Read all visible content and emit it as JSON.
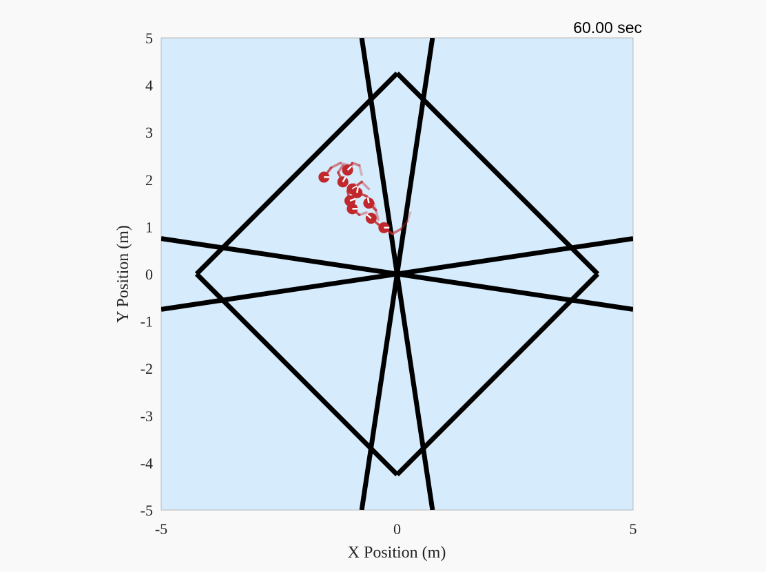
{
  "timer": {
    "text": "60.00 sec"
  },
  "chart_data": {
    "type": "scatter",
    "title": "",
    "xlabel": "X Position (m)",
    "ylabel": "Y Position (m)",
    "xlim": [
      -5,
      5
    ],
    "ylim": [
      -5,
      5
    ],
    "xticks": [
      -5,
      0,
      5
    ],
    "xtick_labels": [
      "-5",
      "0",
      "5"
    ],
    "yticks": [
      5,
      4,
      3,
      2,
      1,
      0,
      -1,
      -2,
      -3,
      -4,
      -5
    ],
    "ytick_labels": [
      "5",
      "4",
      "3",
      "2",
      "1",
      "0",
      "-1",
      "-2",
      "-3",
      "-4",
      "-5"
    ],
    "grid": false,
    "legend": "none",
    "colors": {
      "plot_background": "#d6ebfb",
      "boundary": "#000000",
      "agent": "#c0282d",
      "heading_stripe": "#ffffff"
    },
    "boundary_lines": [
      {
        "x": [
          -0.75,
          0.75
        ],
        "y": [
          5,
          -5
        ]
      },
      {
        "x": [
          -0.75,
          0.75
        ],
        "y": [
          -5,
          5
        ]
      },
      {
        "x": [
          -5,
          5
        ],
        "y": [
          -0.75,
          0.75
        ]
      },
      {
        "x": [
          -5,
          5
        ],
        "y": [
          0.75,
          -0.75
        ]
      },
      {
        "x": [
          -4.25,
          0
        ],
        "y": [
          0,
          4.25
        ]
      },
      {
        "x": [
          0,
          4.25
        ],
        "y": [
          4.25,
          0
        ]
      },
      {
        "x": [
          4.25,
          0
        ],
        "y": [
          0,
          -4.25
        ]
      },
      {
        "x": [
          0,
          -4.25
        ],
        "y": [
          -4.25,
          0
        ]
      }
    ],
    "series": [
      {
        "points": [
          {
            "x": -1.55,
            "y": 2.05,
            "heading": 0
          },
          {
            "x": -1.05,
            "y": 2.2,
            "heading": 45
          },
          {
            "x": -1.15,
            "y": 1.95,
            "heading": 60
          },
          {
            "x": -0.95,
            "y": 1.8,
            "heading": 30
          },
          {
            "x": -0.85,
            "y": 1.72,
            "heading": 80
          },
          {
            "x": -1.0,
            "y": 1.55,
            "heading": 20
          },
          {
            "x": -0.95,
            "y": 1.38,
            "heading": 0
          },
          {
            "x": -0.6,
            "y": 1.5,
            "heading": 100
          },
          {
            "x": -0.55,
            "y": 1.18,
            "heading": 140
          },
          {
            "x": -0.28,
            "y": 0.98,
            "heading": 0
          }
        ],
        "trails": [
          [
            [
              -1.55,
              2.05
            ],
            [
              -1.4,
              2.25
            ],
            [
              -1.2,
              2.35
            ],
            [
              -1.0,
              2.3
            ]
          ],
          [
            [
              -1.05,
              2.2
            ],
            [
              -0.95,
              2.35
            ],
            [
              -0.8,
              2.3
            ],
            [
              -0.75,
              2.1
            ]
          ],
          [
            [
              -1.15,
              1.95
            ],
            [
              -1.25,
              2.15
            ],
            [
              -1.15,
              2.3
            ],
            [
              -0.95,
              2.3
            ]
          ],
          [
            [
              -0.95,
              1.8
            ],
            [
              -0.75,
              1.95
            ],
            [
              -0.6,
              1.8
            ]
          ],
          [
            [
              -0.85,
              1.72
            ],
            [
              -0.65,
              1.65
            ],
            [
              -0.5,
              1.5
            ],
            [
              -0.45,
              1.35
            ]
          ],
          [
            [
              -1.0,
              1.55
            ],
            [
              -1.05,
              1.75
            ],
            [
              -0.9,
              1.9
            ]
          ],
          [
            [
              -0.95,
              1.38
            ],
            [
              -0.8,
              1.25
            ],
            [
              -0.65,
              1.3
            ]
          ],
          [
            [
              -0.6,
              1.5
            ],
            [
              -0.45,
              1.35
            ],
            [
              -0.4,
              1.15
            ]
          ],
          [
            [
              -0.55,
              1.18
            ],
            [
              -0.4,
              1.05
            ],
            [
              -0.3,
              0.92
            ]
          ],
          [
            [
              -0.28,
              0.98
            ],
            [
              -0.1,
              0.85
            ],
            [
              0.08,
              0.95
            ],
            [
              0.22,
              1.12
            ],
            [
              0.28,
              1.3
            ]
          ]
        ]
      }
    ]
  }
}
